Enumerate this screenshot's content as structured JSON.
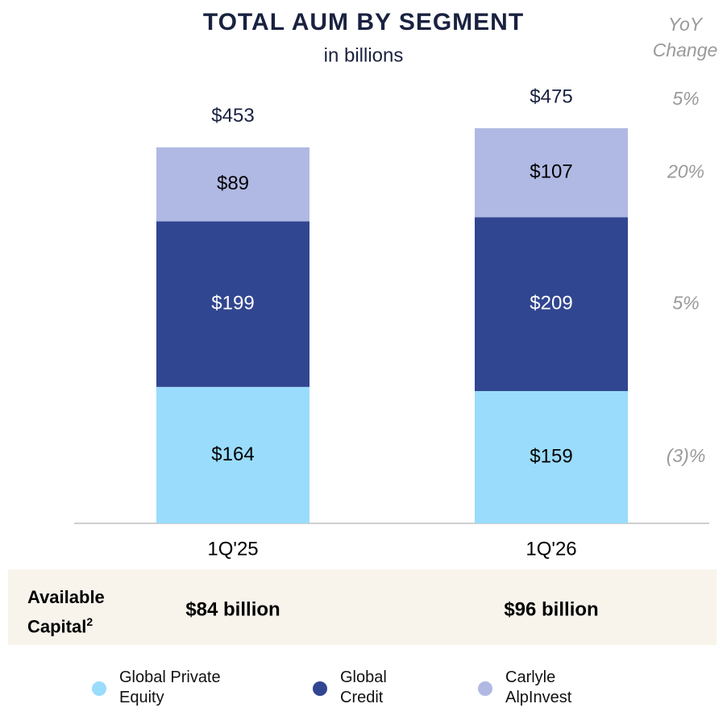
{
  "chart_data": {
    "type": "bar",
    "stacked": true,
    "title": "TOTAL AUM BY SEGMENT",
    "subtitle": "in billions",
    "categories": [
      "1Q'25",
      "1Q'26"
    ],
    "series": [
      {
        "name": "Global Private Equity",
        "color": "#9adcfb",
        "label_color": "#000000",
        "values": [
          164,
          159
        ],
        "value_labels": [
          "$164",
          "$159"
        ],
        "yoy": -3,
        "yoy_label": "(3)%"
      },
      {
        "name": "Global Credit",
        "color": "#314690",
        "label_color": "#ffffff",
        "values": [
          199,
          209
        ],
        "value_labels": [
          "$199",
          "$209"
        ],
        "yoy": 5,
        "yoy_label": "5%"
      },
      {
        "name": "Carlyle AlpInvest",
        "color": "#b0b9e3",
        "label_color": "#000000",
        "values": [
          89,
          107
        ],
        "value_labels": [
          "$89",
          "$107"
        ],
        "yoy": 20,
        "yoy_label": "20%"
      }
    ],
    "totals": {
      "values": [
        453,
        475
      ],
      "value_labels": [
        "$453",
        "$475"
      ],
      "yoy": 5,
      "yoy_label": "5%"
    },
    "yoy_title": "YoY Change",
    "available_capital": {
      "label": "Available Capital",
      "footnote": "2",
      "values": [
        84,
        96
      ],
      "value_labels": [
        "$84 billion",
        "$96 billion"
      ]
    }
  }
}
